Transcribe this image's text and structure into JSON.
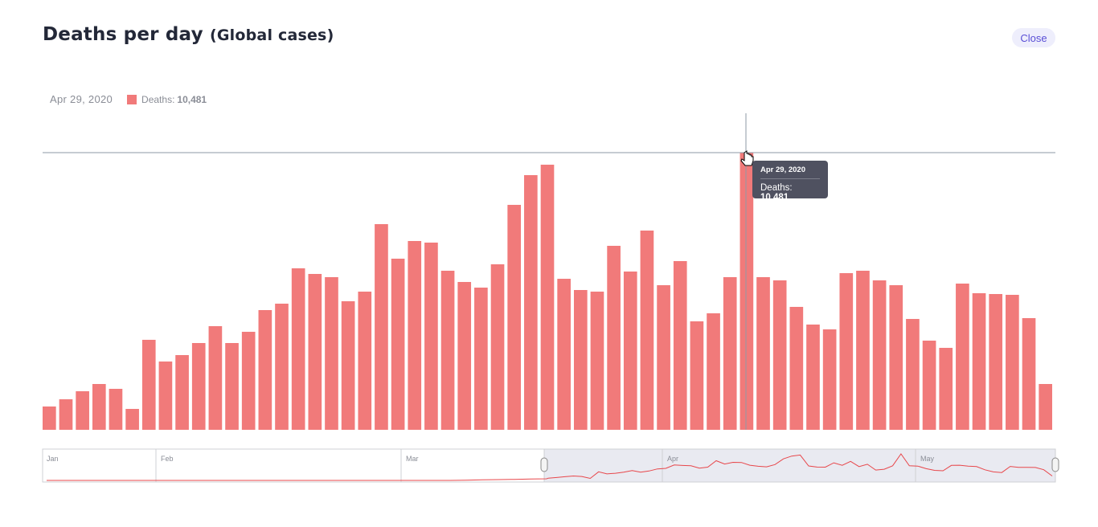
{
  "header": {
    "title": "Deaths per day",
    "subtitle": "(Global cases)",
    "close_label": "Close"
  },
  "legend": {
    "date": "Apr 29, 2020",
    "series_label": "Deaths:",
    "value": "10,481"
  },
  "tooltip": {
    "date": "Apr 29, 2020",
    "label": "Deaths:",
    "value": "10,481"
  },
  "navigator": {
    "months": [
      "Jan",
      "Feb",
      "Mar",
      "Apr",
      "May"
    ]
  },
  "colors": {
    "bar": "#f17a7a",
    "accent": "#5a4fd6",
    "line": "#e8474b"
  },
  "chart_data": {
    "type": "bar",
    "title": "Deaths per day (Global cases)",
    "xlabel": "",
    "ylabel": "Deaths",
    "x_start": "2020-03-18",
    "x_end": "2020-05-17",
    "highlight": {
      "date": "Apr 29, 2020",
      "value": 10481
    },
    "ylim": [
      0,
      10481
    ],
    "grid": false,
    "series": [
      {
        "name": "Deaths",
        "values": [
          881,
          1154,
          1458,
          1732,
          1549,
          790,
          3403,
          2582,
          2825,
          3281,
          3919,
          3281,
          3706,
          4527,
          4770,
          6106,
          5894,
          5772,
          4861,
          5225,
          7777,
          6471,
          7139,
          7079,
          6015,
          5590,
          5377,
          6258,
          8506,
          9630,
          10025,
          5711,
          5286,
          5225,
          6957,
          5985,
          7534,
          5468,
          6380,
          4101,
          4405,
          5772,
          10481,
          5772,
          5651,
          4648,
          3980,
          3798,
          5924,
          6015,
          5651,
          5468,
          4192,
          3372,
          3099,
          5529,
          5165,
          5134,
          5104,
          4223,
          1732
        ]
      }
    ]
  }
}
